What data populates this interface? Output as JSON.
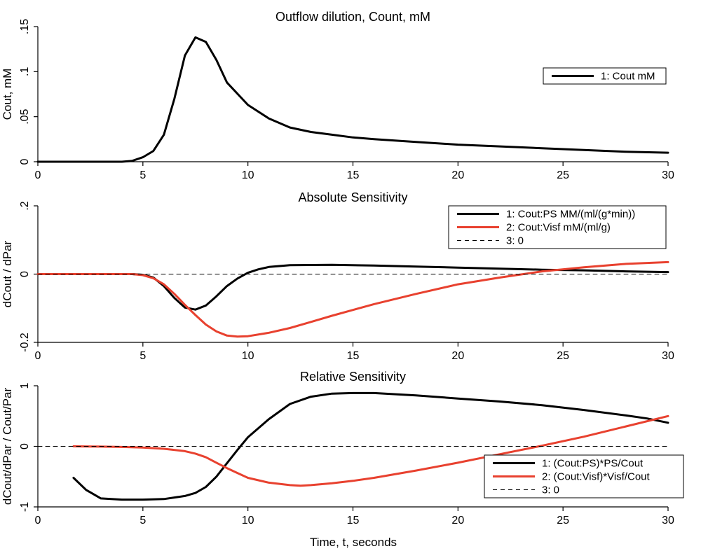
{
  "xlabel": "Time, t, seconds",
  "chart_data": [
    {
      "type": "line",
      "title": "Outflow dilution, Count, mM",
      "xlabel": "",
      "ylabel": "Cout, mM",
      "xlim": [
        0,
        30
      ],
      "ylim": [
        0,
        0.15
      ],
      "xticks": [
        0,
        5,
        10,
        15,
        20,
        25,
        30
      ],
      "xtick_labels": [
        "0",
        "5",
        "10",
        "15",
        "20",
        "25",
        "30"
      ],
      "yticks": [
        0,
        0.05,
        0.1,
        0.15
      ],
      "ytick_labels": [
        "0",
        ".05",
        ".1",
        ".15"
      ],
      "legend_position": "top-right",
      "series": [
        {
          "name": "1: Cout mM",
          "color": "#000000",
          "dash": "solid",
          "x": [
            0,
            4,
            4.5,
            5,
            5.5,
            6,
            6.5,
            7,
            7.5,
            8,
            8.5,
            9,
            10,
            11,
            12,
            13,
            14,
            15,
            16,
            18,
            20,
            22,
            24,
            26,
            28,
            30
          ],
          "y": [
            0,
            0,
            0.001,
            0.005,
            0.012,
            0.03,
            0.07,
            0.118,
            0.138,
            0.133,
            0.113,
            0.088,
            0.063,
            0.048,
            0.038,
            0.033,
            0.03,
            0.027,
            0.025,
            0.022,
            0.019,
            0.017,
            0.015,
            0.013,
            0.011,
            0.01
          ]
        }
      ]
    },
    {
      "type": "line",
      "title": "Absolute Sensitivity",
      "xlabel": "",
      "ylabel": "dCout / dPar",
      "xlim": [
        0,
        30
      ],
      "ylim": [
        -0.2,
        0.2
      ],
      "xticks": [
        0,
        5,
        10,
        15,
        20,
        25,
        30
      ],
      "xtick_labels": [
        "0",
        "5",
        "10",
        "15",
        "20",
        "25",
        "30"
      ],
      "yticks": [
        -0.2,
        0,
        0.2
      ],
      "ytick_labels": [
        "-0.2",
        "0",
        ".2"
      ],
      "legend_position": "top-right",
      "series": [
        {
          "name": "1: Cout:PS MM/(ml/(g*min))",
          "color": "#000000",
          "dash": "solid",
          "x": [
            0,
            4.5,
            5,
            5.5,
            6,
            6.5,
            7,
            7.5,
            8,
            8.5,
            9,
            9.5,
            10,
            10.5,
            11,
            12,
            14,
            16,
            18,
            20,
            22,
            24,
            26,
            28,
            30
          ],
          "y": [
            0,
            0,
            -0.002,
            -0.01,
            -0.035,
            -0.07,
            -0.098,
            -0.104,
            -0.092,
            -0.065,
            -0.035,
            -0.013,
            0.004,
            0.014,
            0.021,
            0.026,
            0.027,
            0.025,
            0.022,
            0.019,
            0.016,
            0.013,
            0.011,
            0.008,
            0.006
          ]
        },
        {
          "name": "2: Cout:Visf mM/(ml/g)",
          "color": "#e8412f",
          "dash": "solid",
          "x": [
            0,
            4.5,
            5,
            5.5,
            6,
            6.5,
            7,
            7.5,
            8,
            8.5,
            9,
            9.5,
            10,
            11,
            12,
            13,
            14,
            15,
            16,
            18,
            20,
            22,
            24,
            26,
            28,
            30
          ],
          "y": [
            0,
            0,
            -0.003,
            -0.012,
            -0.03,
            -0.058,
            -0.09,
            -0.12,
            -0.148,
            -0.168,
            -0.18,
            -0.183,
            -0.182,
            -0.172,
            -0.158,
            -0.14,
            -0.122,
            -0.105,
            -0.088,
            -0.058,
            -0.03,
            -0.01,
            0.008,
            0.02,
            0.03,
            0.035
          ]
        },
        {
          "name": "3: 0",
          "color": "#000000",
          "dash": "dashed",
          "x": [
            0,
            30
          ],
          "y": [
            0,
            0
          ]
        }
      ]
    },
    {
      "type": "line",
      "title": "Relative Sensitivity",
      "xlabel": "Time, t, seconds",
      "ylabel": "dCout/dPar / Cout/Par",
      "xlim": [
        0,
        30
      ],
      "ylim": [
        -1,
        1
      ],
      "xticks": [
        0,
        5,
        10,
        15,
        20,
        25,
        30
      ],
      "xtick_labels": [
        "0",
        "5",
        "10",
        "15",
        "20",
        "25",
        "30"
      ],
      "yticks": [
        -1,
        0,
        1
      ],
      "ytick_labels": [
        "-1",
        "0",
        "1"
      ],
      "legend_position": "bottom-right",
      "series": [
        {
          "name": "1: (Cout:PS)*PS/Cout",
          "color": "#000000",
          "dash": "solid",
          "x": [
            1.7,
            2.3,
            3,
            4,
            5,
            6,
            7,
            7.5,
            8,
            8.5,
            9,
            9.5,
            10,
            11,
            12,
            13,
            14,
            15,
            16,
            18,
            20,
            22,
            24,
            26,
            28,
            29,
            30
          ],
          "y": [
            -0.52,
            -0.72,
            -0.86,
            -0.88,
            -0.88,
            -0.87,
            -0.82,
            -0.77,
            -0.67,
            -0.5,
            -0.28,
            -0.06,
            0.15,
            0.45,
            0.7,
            0.82,
            0.87,
            0.88,
            0.88,
            0.84,
            0.79,
            0.74,
            0.68,
            0.6,
            0.51,
            0.46,
            0.39
          ]
        },
        {
          "name": "2: (Cout:Visf)*Visf/Cout",
          "color": "#e8412f",
          "dash": "solid",
          "x": [
            1.7,
            3,
            4,
            5,
            6,
            7,
            7.5,
            8,
            8.5,
            9,
            9.5,
            10,
            11,
            12,
            12.5,
            13,
            14,
            15,
            16,
            18,
            20,
            22,
            24,
            26,
            28,
            30
          ],
          "y": [
            0,
            -0.005,
            -0.01,
            -0.02,
            -0.04,
            -0.08,
            -0.12,
            -0.18,
            -0.27,
            -0.36,
            -0.44,
            -0.52,
            -0.6,
            -0.64,
            -0.65,
            -0.64,
            -0.61,
            -0.57,
            -0.52,
            -0.4,
            -0.27,
            -0.13,
            0.01,
            0.16,
            0.33,
            0.5
          ]
        },
        {
          "name": "3: 0",
          "color": "#000000",
          "dash": "dashed",
          "x": [
            0,
            30
          ],
          "y": [
            0,
            0
          ]
        }
      ]
    }
  ]
}
